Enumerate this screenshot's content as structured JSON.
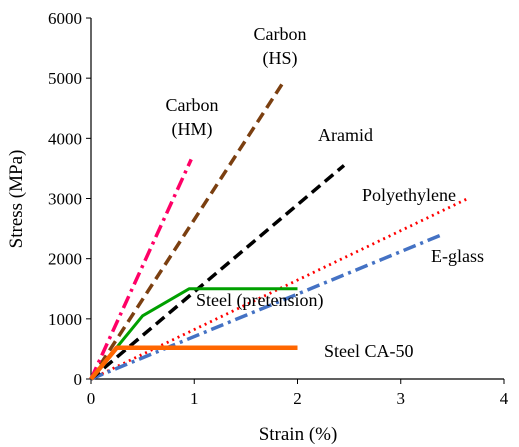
{
  "chart_data": {
    "type": "line",
    "title": "",
    "xlabel": "Strain (%)",
    "ylabel": "Stress (MPa)",
    "xlim": [
      0,
      4
    ],
    "ylim": [
      0,
      6000
    ],
    "xticks": [
      "0",
      "1",
      "2",
      "3",
      "4"
    ],
    "yticks": [
      "0",
      "1000",
      "2000",
      "3000",
      "4000",
      "5000",
      "6000"
    ],
    "grid": false,
    "legend": "none",
    "series": [
      {
        "id": "carbon-hm",
        "label_lines": [
          "Carbon",
          "(HM)"
        ],
        "color": "#ff0066",
        "dash": "dash-dot",
        "points": [
          [
            0,
            0
          ],
          [
            0.97,
            3650
          ]
        ]
      },
      {
        "id": "carbon-hs",
        "label_lines": [
          "Carbon",
          "(HS)"
        ],
        "color": "#7b3f10",
        "dash": "dash",
        "points": [
          [
            0,
            0
          ],
          [
            1.85,
            4900
          ]
        ]
      },
      {
        "id": "aramid",
        "label_lines": [
          "Aramid"
        ],
        "color": "#000000",
        "dash": "dash",
        "points": [
          [
            0,
            0
          ],
          [
            2.45,
            3550
          ]
        ]
      },
      {
        "id": "polyethylene",
        "label_lines": [
          "Polyethylene"
        ],
        "color": "#ff0000",
        "dash": "dot",
        "points": [
          [
            0,
            0
          ],
          [
            3.65,
            3000
          ]
        ]
      },
      {
        "id": "e-glass",
        "label_lines": [
          "E-glass"
        ],
        "color": "#4472c4",
        "dash": "dash-dot",
        "points": [
          [
            0,
            0
          ],
          [
            3.4,
            2400
          ]
        ]
      },
      {
        "id": "steel-pretension",
        "label_lines": [
          "Steel (pretension)"
        ],
        "color": "#00a000",
        "dash": "solid",
        "points": [
          [
            0,
            0
          ],
          [
            0.5,
            1050
          ],
          [
            0.95,
            1500
          ],
          [
            2.0,
            1500
          ]
        ]
      },
      {
        "id": "steel-ca50",
        "label_lines": [
          "Steel CA-50"
        ],
        "color": "#ff6600",
        "dash": "solid",
        "points": [
          [
            0,
            0
          ],
          [
            0.25,
            520
          ],
          [
            2.0,
            520
          ]
        ]
      }
    ]
  }
}
